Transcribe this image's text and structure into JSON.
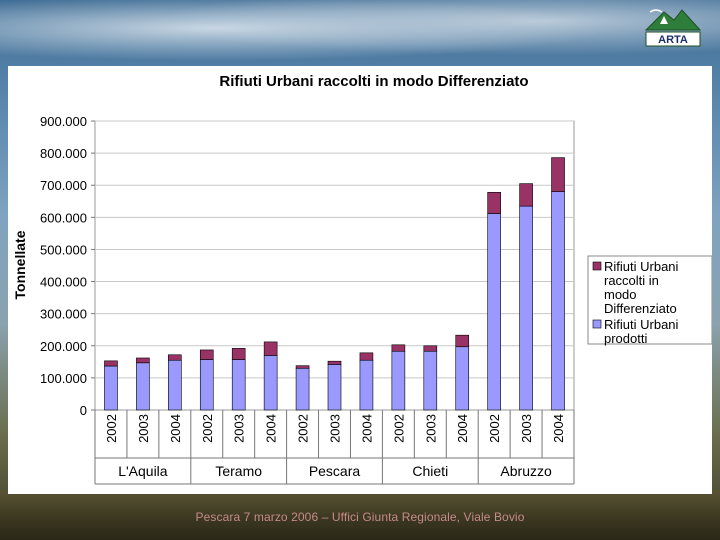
{
  "logo": {
    "text": "ARTA"
  },
  "footer": {
    "text": "Pescara 7 marzo 2006 – Uffici Giunta Regionale, Viale Bovio"
  },
  "chart_data": {
    "type": "bar",
    "stacked": true,
    "title": "Rifiuti Urbani raccolti in modo Differenziato",
    "ylabel": "Tonnellate",
    "ylim": [
      0,
      900000
    ],
    "yticks": [
      0,
      100000,
      200000,
      300000,
      400000,
      500000,
      600000,
      700000,
      800000,
      900000
    ],
    "ytick_labels": [
      "0",
      "100.000",
      "200.000",
      "300.000",
      "400.000",
      "500.000",
      "600.000",
      "700.000",
      "800.000",
      "900.000"
    ],
    "grid": true,
    "legend_position": "right",
    "groups": [
      "L'Aquila",
      "Teramo",
      "Pescara",
      "Chieti",
      "Abruzzo"
    ],
    "years": [
      "2002",
      "2003",
      "2004"
    ],
    "series": [
      {
        "name": "Rifiuti Urbani prodotti",
        "color": "#9999ff",
        "values": [
          137000,
          147000,
          155000,
          157000,
          157000,
          170000,
          130000,
          142000,
          155000,
          183000,
          183000,
          197000,
          612000,
          635000,
          680000
        ]
      },
      {
        "name": "Rifiuti Urbani raccolti in modo Differenziato",
        "color": "#993366",
        "values": [
          16000,
          15000,
          17000,
          30000,
          35000,
          42000,
          8000,
          10000,
          23000,
          20000,
          17000,
          36000,
          66000,
          70000,
          106000
        ]
      }
    ],
    "legend": [
      {
        "label": "Rifiuti Urbani raccolti in modo Differenziato",
        "color": "#993366"
      },
      {
        "label": "Rifiuti Urbani prodotti",
        "color": "#9999ff"
      }
    ]
  }
}
